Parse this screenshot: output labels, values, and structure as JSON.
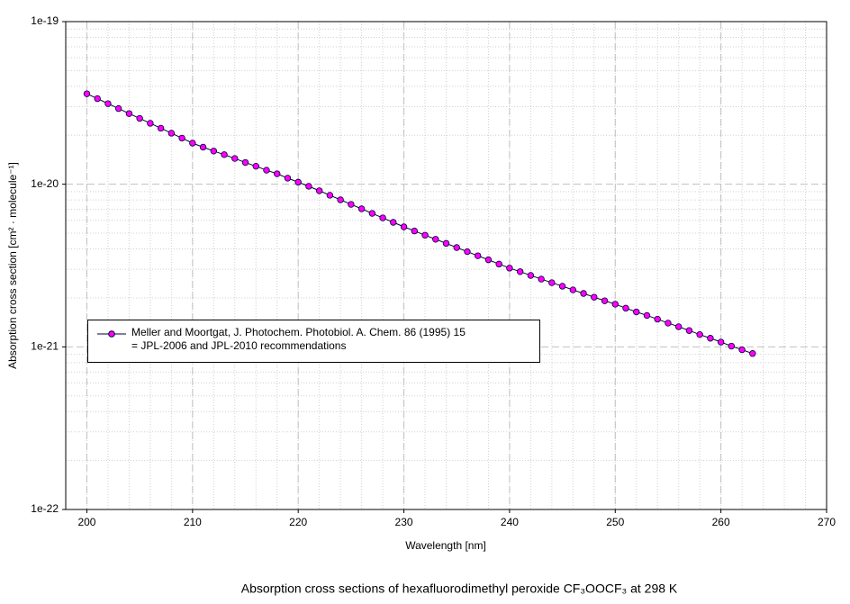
{
  "chart_data": {
    "type": "line",
    "title": "Absorption cross sections of hexafluorodimethyl peroxide CF₃OOCF₃ at 298 K",
    "x_label": "Wavelength [nm]",
    "y_label": "Absorption cross section [cm² · molecule⁻¹]",
    "log_y": true,
    "grid": true,
    "legend": "left",
    "xlim": [
      198,
      270
    ],
    "xticks": [
      200,
      210,
      220,
      230,
      240,
      250,
      260,
      270
    ],
    "ylim": [
      1e-22,
      1e-19
    ],
    "yticks": [
      1e-22,
      1e-21,
      1e-20,
      1e-19
    ],
    "x": [
      200,
      201,
      202,
      203,
      204,
      205,
      206,
      207,
      208,
      209,
      210,
      211,
      212,
      213,
      214,
      215,
      216,
      217,
      218,
      219,
      220,
      221,
      222,
      223,
      224,
      225,
      226,
      227,
      228,
      229,
      230,
      231,
      232,
      233,
      234,
      235,
      236,
      237,
      238,
      239,
      240,
      241,
      242,
      243,
      244,
      245,
      246,
      247,
      248,
      249,
      250,
      251,
      252,
      253,
      254,
      255,
      256,
      257,
      258,
      259,
      260,
      261,
      262,
      263
    ],
    "series": [
      {
        "name": "Meller and Moortgat, J. Photochem. Photobiol. A. Chem. 86 (1995) 15\n= JPL-2006 and JPL-2010 recommendations",
        "color": "#ff00ff",
        "line_color": "#000033",
        "values": [
          3.6e-20,
          3.36e-20,
          3.13e-20,
          2.92e-20,
          2.72e-20,
          2.54e-20,
          2.37e-20,
          2.21e-20,
          2.06e-20,
          1.92e-20,
          1.79e-20,
          1.69e-20,
          1.6e-20,
          1.52e-20,
          1.44e-20,
          1.36e-20,
          1.29e-20,
          1.22e-20,
          1.16e-20,
          1.09e-20,
          1.03e-20,
          9.71e-21,
          9.12e-21,
          8.55e-21,
          8.02e-21,
          7.52e-21,
          7.06e-21,
          6.62e-21,
          6.21e-21,
          5.83e-21,
          5.47e-21,
          5.16e-21,
          4.86e-21,
          4.59e-21,
          4.33e-21,
          4.08e-21,
          3.85e-21,
          3.63e-21,
          3.43e-21,
          3.23e-21,
          3.05e-21,
          2.9e-21,
          2.75e-21,
          2.61e-21,
          2.48e-21,
          2.36e-21,
          2.24e-21,
          2.13e-21,
          2.02e-21,
          1.92e-21,
          1.83e-21,
          1.73e-21,
          1.64e-21,
          1.56e-21,
          1.48e-21,
          1.4e-21,
          1.33e-21,
          1.26e-21,
          1.19e-21,
          1.13e-21,
          1.07e-21,
          1.01e-21,
          9.6e-22,
          9.1e-22
        ]
      }
    ]
  }
}
